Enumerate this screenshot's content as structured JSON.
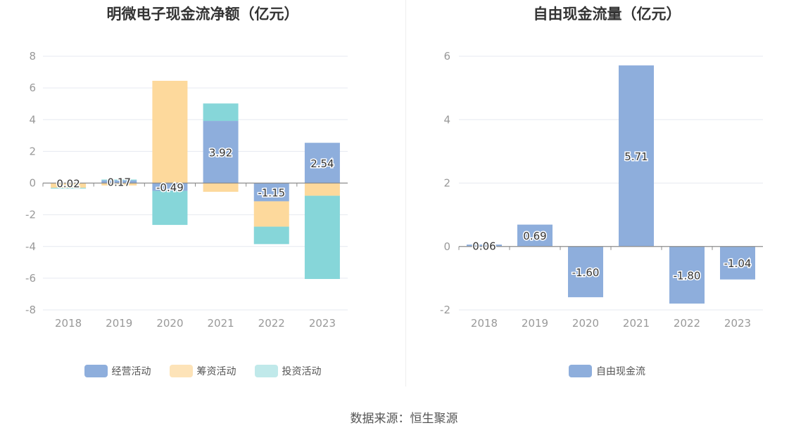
{
  "source_text": "数据来源：恒生聚源",
  "colors": {
    "operating": "#8eaedc",
    "financing": "#fdd99c",
    "investing": "#86d6d9",
    "fcf": "#8eaedc"
  },
  "chart_data": [
    {
      "type": "bar",
      "stacked": true,
      "title": "明微电子现金流净额（亿元）",
      "categories": [
        "2018",
        "2019",
        "2020",
        "2021",
        "2022",
        "2023"
      ],
      "ylim": [
        -8,
        8
      ],
      "yticks": [
        8,
        6,
        4,
        2,
        0,
        -2,
        -4,
        -6,
        -8
      ],
      "grid": true,
      "legend_position": "bottom",
      "series": [
        {
          "name": "经营活动",
          "values": [
            0.02,
            0.17,
            -0.49,
            3.92,
            -1.15,
            2.54
          ]
        },
        {
          "name": "筹资活动",
          "values": [
            -0.3,
            -0.15,
            6.45,
            -0.55,
            -1.6,
            -0.8
          ]
        },
        {
          "name": "投资活动",
          "values": [
            -0.05,
            0.05,
            -2.15,
            1.1,
            -1.1,
            -5.25
          ]
        }
      ],
      "data_labels": [
        "0.02",
        "0.17",
        "-0.49",
        "3.92",
        "-1.15",
        "2.54"
      ]
    },
    {
      "type": "bar",
      "title": "自由现金流量（亿元）",
      "categories": [
        "2018",
        "2019",
        "2020",
        "2021",
        "2022",
        "2023"
      ],
      "ylim": [
        -2,
        6
      ],
      "yticks": [
        6,
        4,
        2,
        0,
        -2
      ],
      "grid": true,
      "legend_position": "bottom",
      "series": [
        {
          "name": "自由现金流",
          "values": [
            0.06,
            0.69,
            -1.6,
            5.71,
            -1.8,
            -1.04
          ]
        }
      ],
      "data_labels": [
        "0.06",
        "0.69",
        "-1.60",
        "5.71",
        "-1.80",
        "-1.04"
      ]
    }
  ]
}
